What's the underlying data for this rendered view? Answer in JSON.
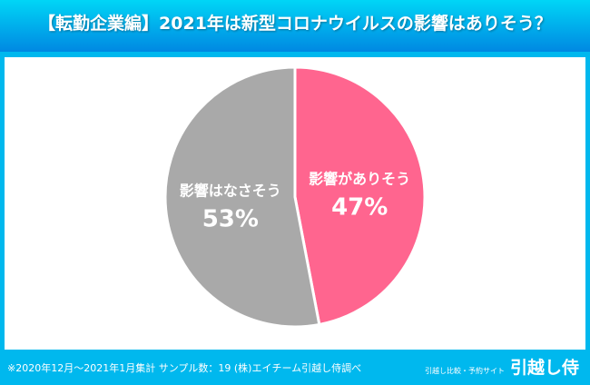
{
  "title": "【転勤企業編】2021年は新型コロナウイルスの影響はありそう？",
  "footer": {
    "note": "※2020年12月～2021年1月集計 サンプル数：19 (株)エイチーム引越し侍調べ",
    "brand_sub": "引越し比較・予約サイト",
    "brand_logo": "引越し侍"
  },
  "chart_data": {
    "type": "pie",
    "title": "【転勤企業編】2021年は新型コロナウイルスの影響はありそう？",
    "slices": [
      {
        "label": "影響がありそう",
        "value": 47,
        "display": "47%",
        "color": "#ff658f"
      },
      {
        "label": "影響はなさそう",
        "value": 53,
        "display": "53%",
        "color": "#a9a9a9"
      }
    ]
  }
}
